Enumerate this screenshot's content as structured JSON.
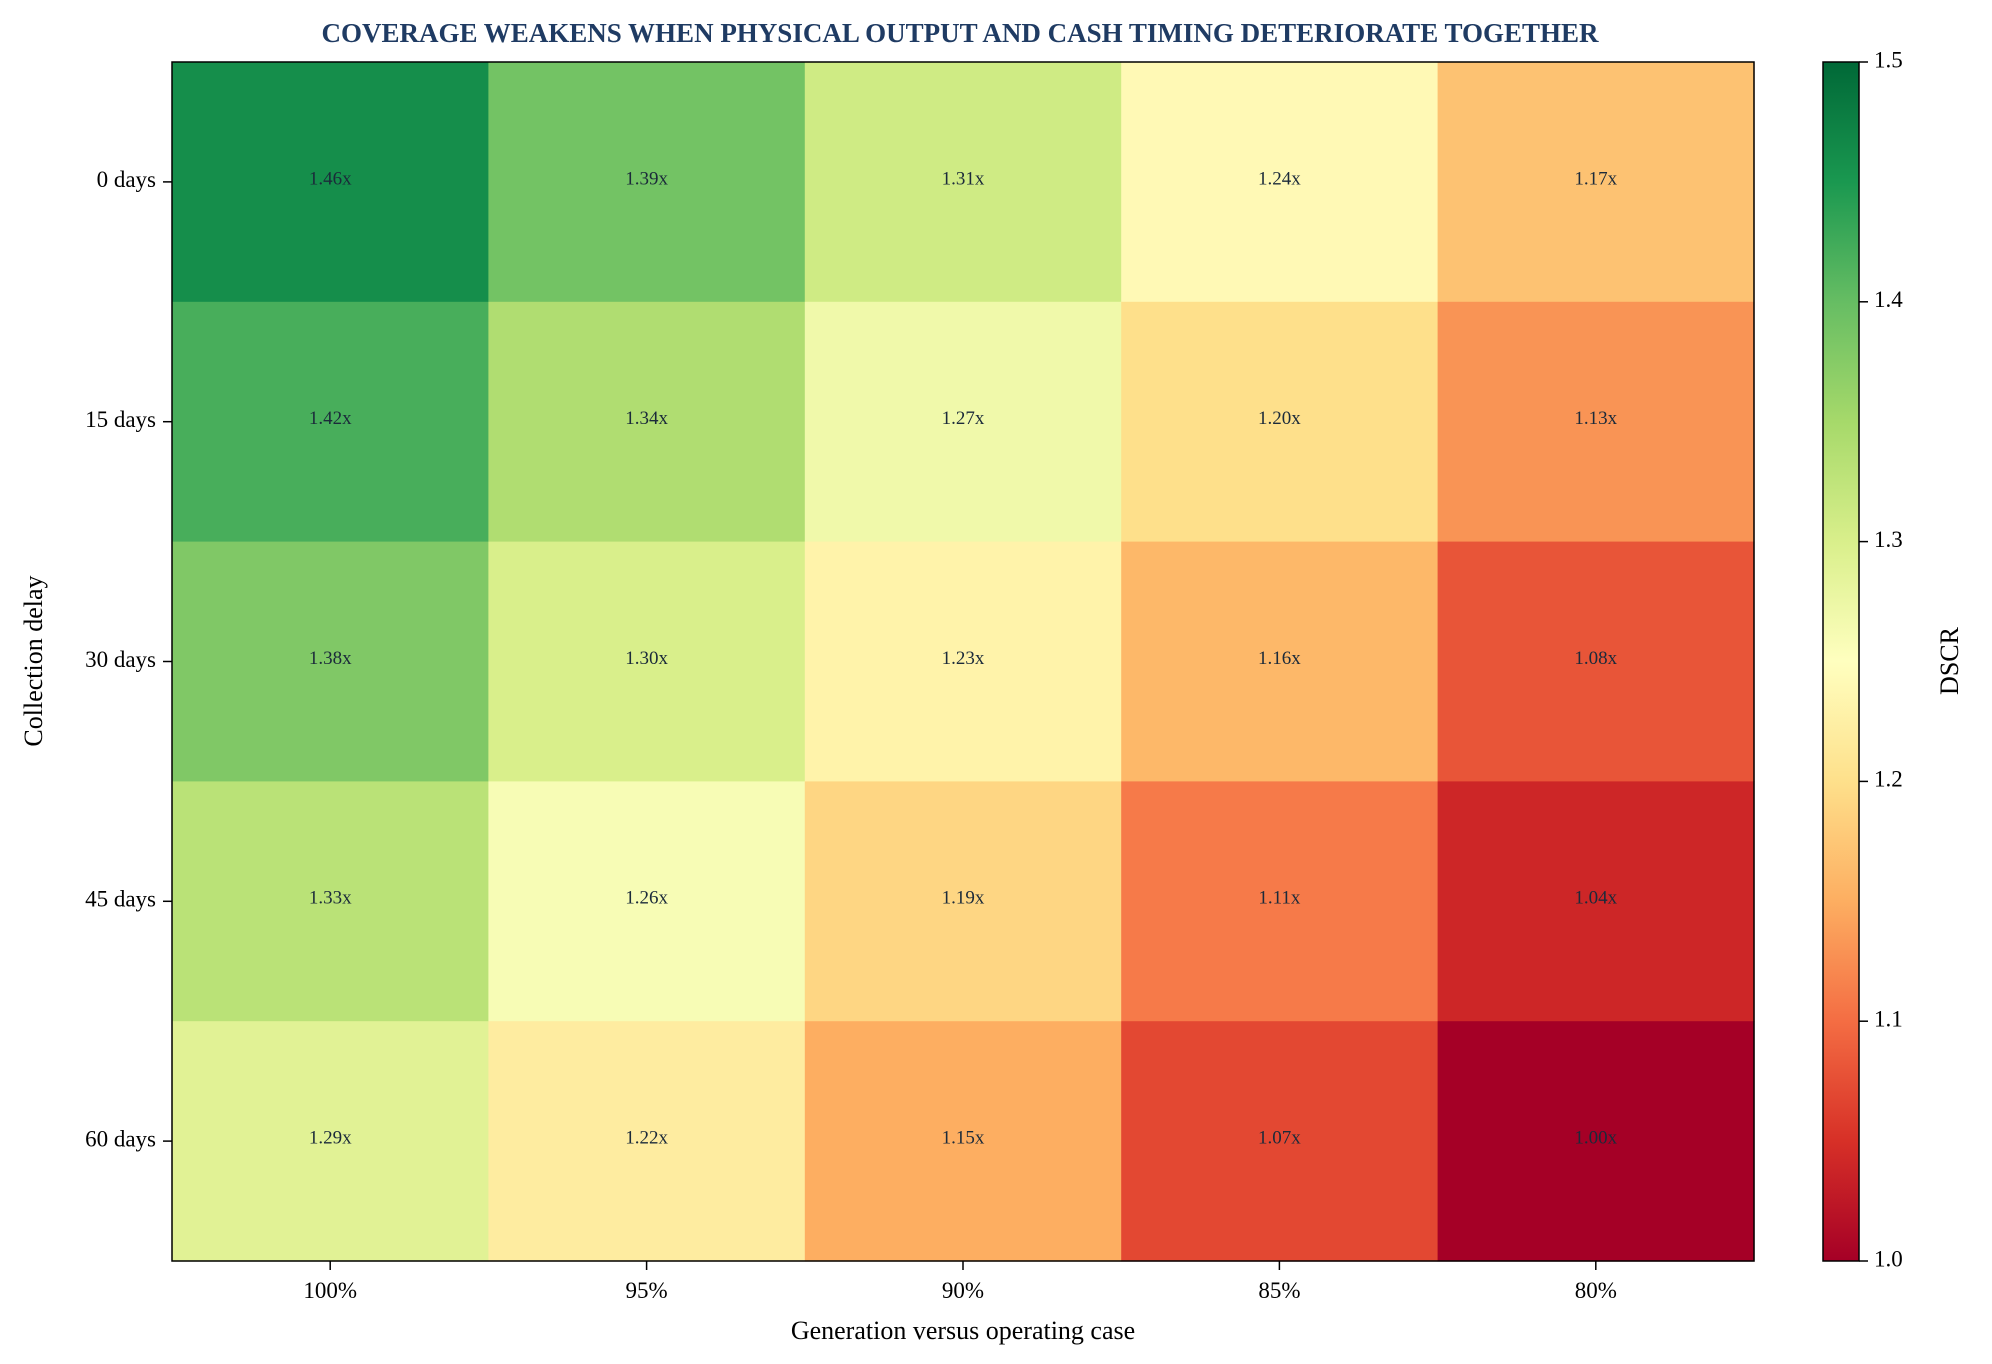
{
  "chart_data": {
    "type": "heatmap",
    "title": "COVERAGE WEAKENS WHEN PHYSICAL OUTPUT AND CASH TIMING DETERIORATE TOGETHER",
    "xlabel": "Generation versus operating case",
    "ylabel": "Collection delay",
    "x_categories": [
      "100%",
      "95%",
      "90%",
      "85%",
      "80%"
    ],
    "y_categories": [
      "0 days",
      "15 days",
      "30 days",
      "45 days",
      "60 days"
    ],
    "values": [
      [
        1.46,
        1.39,
        1.31,
        1.24,
        1.17
      ],
      [
        1.42,
        1.34,
        1.27,
        1.2,
        1.13
      ],
      [
        1.38,
        1.3,
        1.23,
        1.16,
        1.08
      ],
      [
        1.33,
        1.26,
        1.19,
        1.11,
        1.04
      ],
      [
        1.29,
        1.22,
        1.15,
        1.07,
        1.0
      ]
    ],
    "cell_labels": [
      [
        "1.46x",
        "1.39x",
        "1.31x",
        "1.24x",
        "1.17x"
      ],
      [
        "1.42x",
        "1.34x",
        "1.27x",
        "1.20x",
        "1.13x"
      ],
      [
        "1.38x",
        "1.30x",
        "1.23x",
        "1.16x",
        "1.08x"
      ],
      [
        "1.33x",
        "1.26x",
        "1.19x",
        "1.11x",
        "1.04x"
      ],
      [
        "1.29x",
        "1.22x",
        "1.15x",
        "1.07x",
        "1.00x"
      ]
    ],
    "colorbar": {
      "label": "DSCR",
      "range": [
        1.0,
        1.5
      ],
      "ticks": [
        "1.0",
        "1.1",
        "1.2",
        "1.3",
        "1.4",
        "1.5"
      ],
      "colormap": "RdYlGn",
      "colors": [
        "#a50026",
        "#d73027",
        "#f46d43",
        "#fdae61",
        "#fee08b",
        "#ffffbf",
        "#d9ef8b",
        "#a6d96a",
        "#66bd63",
        "#1a9850",
        "#006837"
      ]
    },
    "grid": false,
    "title_color": "#1f3b63"
  }
}
